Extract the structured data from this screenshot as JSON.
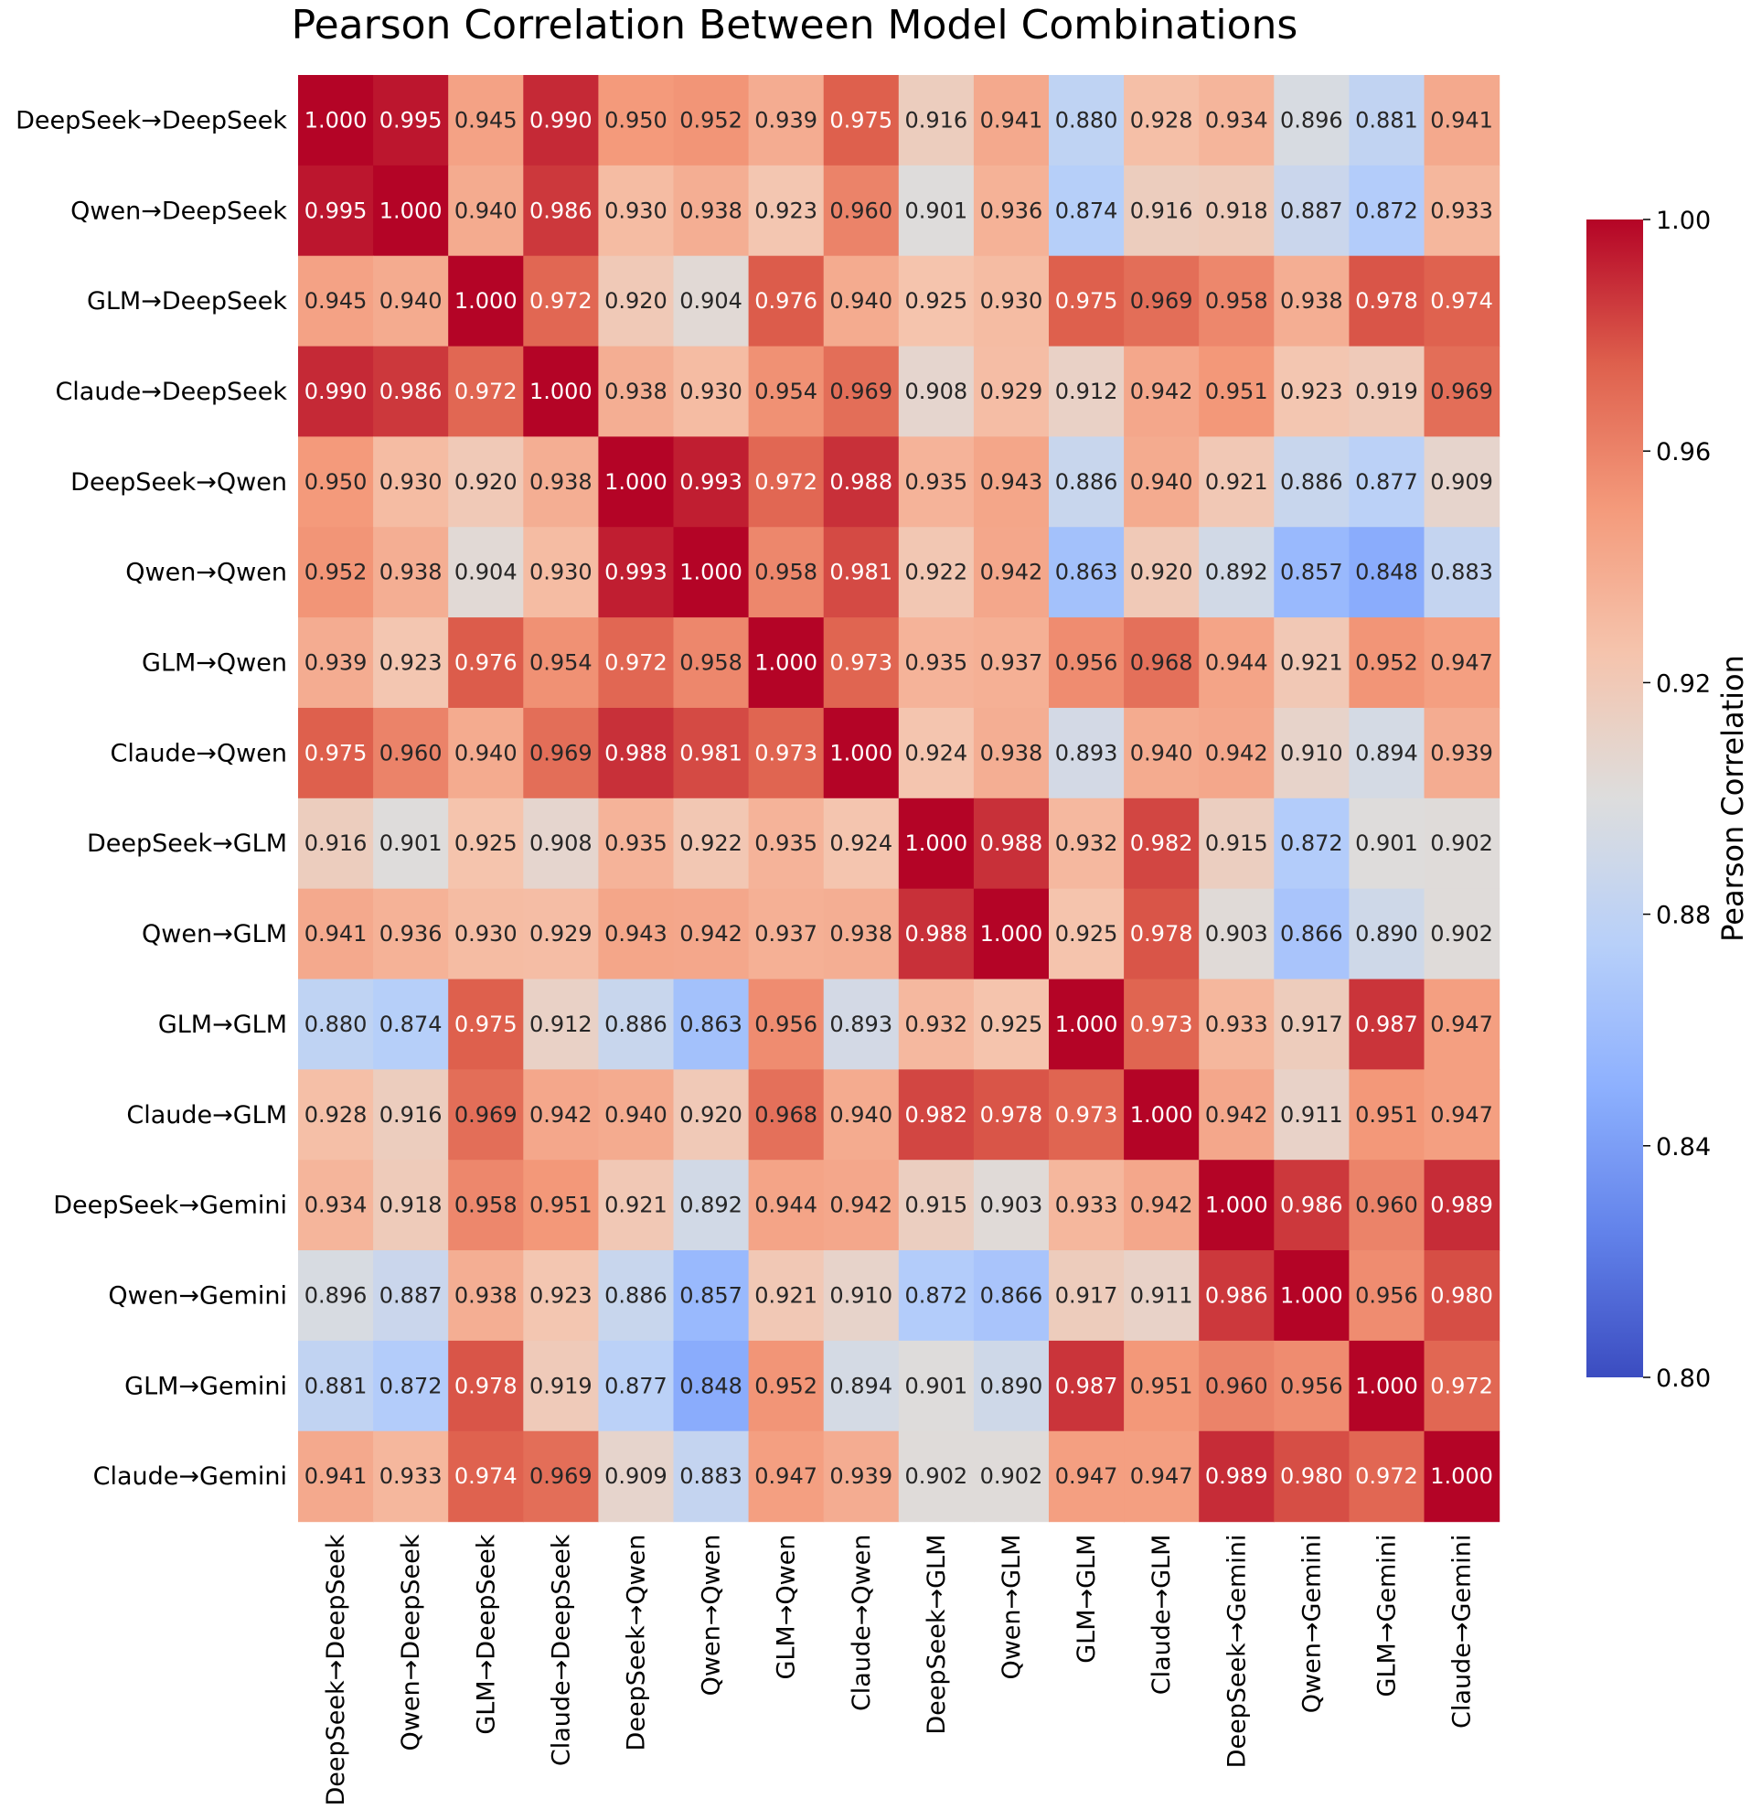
{
  "chart_data": {
    "type": "heatmap",
    "title": "Pearson Correlation Between Model Combinations",
    "xlabel": "",
    "ylabel": "",
    "colormap": "coolwarm",
    "vmin": 0.8,
    "vmax": 1.0,
    "value_format": "0.000",
    "labels": [
      "DeepSeek→DeepSeek",
      "Qwen→DeepSeek",
      "GLM→DeepSeek",
      "Claude→DeepSeek",
      "DeepSeek→Qwen",
      "Qwen→Qwen",
      "GLM→Qwen",
      "Claude→Qwen",
      "DeepSeek→GLM",
      "Qwen→GLM",
      "GLM→GLM",
      "Claude→GLM",
      "DeepSeek→Gemini",
      "Qwen→Gemini",
      "GLM→Gemini",
      "Claude→Gemini"
    ],
    "matrix": [
      [
        1.0,
        0.995,
        0.945,
        0.99,
        0.95,
        0.952,
        0.939,
        0.975,
        0.916,
        0.941,
        0.88,
        0.928,
        0.934,
        0.896,
        0.881,
        0.941
      ],
      [
        0.995,
        1.0,
        0.94,
        0.986,
        0.93,
        0.938,
        0.923,
        0.96,
        0.901,
        0.936,
        0.874,
        0.916,
        0.918,
        0.887,
        0.872,
        0.933
      ],
      [
        0.945,
        0.94,
        1.0,
        0.972,
        0.92,
        0.904,
        0.976,
        0.94,
        0.925,
        0.93,
        0.975,
        0.969,
        0.958,
        0.938,
        0.978,
        0.974
      ],
      [
        0.99,
        0.986,
        0.972,
        1.0,
        0.938,
        0.93,
        0.954,
        0.969,
        0.908,
        0.929,
        0.912,
        0.942,
        0.951,
        0.923,
        0.919,
        0.969
      ],
      [
        0.95,
        0.93,
        0.92,
        0.938,
        1.0,
        0.993,
        0.972,
        0.988,
        0.935,
        0.943,
        0.886,
        0.94,
        0.921,
        0.886,
        0.877,
        0.909
      ],
      [
        0.952,
        0.938,
        0.904,
        0.93,
        0.993,
        1.0,
        0.958,
        0.981,
        0.922,
        0.942,
        0.863,
        0.92,
        0.892,
        0.857,
        0.848,
        0.883
      ],
      [
        0.939,
        0.923,
        0.976,
        0.954,
        0.972,
        0.958,
        1.0,
        0.973,
        0.935,
        0.937,
        0.956,
        0.968,
        0.944,
        0.921,
        0.952,
        0.947
      ],
      [
        0.975,
        0.96,
        0.94,
        0.969,
        0.988,
        0.981,
        0.973,
        1.0,
        0.924,
        0.938,
        0.893,
        0.94,
        0.942,
        0.91,
        0.894,
        0.939
      ],
      [
        0.916,
        0.901,
        0.925,
        0.908,
        0.935,
        0.922,
        0.935,
        0.924,
        1.0,
        0.988,
        0.932,
        0.982,
        0.915,
        0.872,
        0.901,
        0.902
      ],
      [
        0.941,
        0.936,
        0.93,
        0.929,
        0.943,
        0.942,
        0.937,
        0.938,
        0.988,
        1.0,
        0.925,
        0.978,
        0.903,
        0.866,
        0.89,
        0.902
      ],
      [
        0.88,
        0.874,
        0.975,
        0.912,
        0.886,
        0.863,
        0.956,
        0.893,
        0.932,
        0.925,
        1.0,
        0.973,
        0.933,
        0.917,
        0.987,
        0.947
      ],
      [
        0.928,
        0.916,
        0.969,
        0.942,
        0.94,
        0.92,
        0.968,
        0.94,
        0.982,
        0.978,
        0.973,
        1.0,
        0.942,
        0.911,
        0.951,
        0.947
      ],
      [
        0.934,
        0.918,
        0.958,
        0.951,
        0.921,
        0.892,
        0.944,
        0.942,
        0.915,
        0.903,
        0.933,
        0.942,
        1.0,
        0.986,
        0.96,
        0.989
      ],
      [
        0.896,
        0.887,
        0.938,
        0.923,
        0.886,
        0.857,
        0.921,
        0.91,
        0.872,
        0.866,
        0.917,
        0.911,
        0.986,
        1.0,
        0.956,
        0.98
      ],
      [
        0.881,
        0.872,
        0.978,
        0.919,
        0.877,
        0.848,
        0.952,
        0.894,
        0.901,
        0.89,
        0.987,
        0.951,
        0.96,
        0.956,
        1.0,
        0.972
      ],
      [
        0.941,
        0.933,
        0.974,
        0.969,
        0.909,
        0.883,
        0.947,
        0.939,
        0.902,
        0.902,
        0.947,
        0.947,
        0.989,
        0.98,
        0.972,
        1.0
      ]
    ],
    "colorbar": {
      "label": "Pearson Correlation",
      "ticks": [
        0.8,
        0.84,
        0.88,
        0.92,
        0.96,
        1.0
      ],
      "tick_labels": [
        "0.80",
        "0.84",
        "0.88",
        "0.92",
        "0.96",
        "1.00"
      ]
    }
  }
}
